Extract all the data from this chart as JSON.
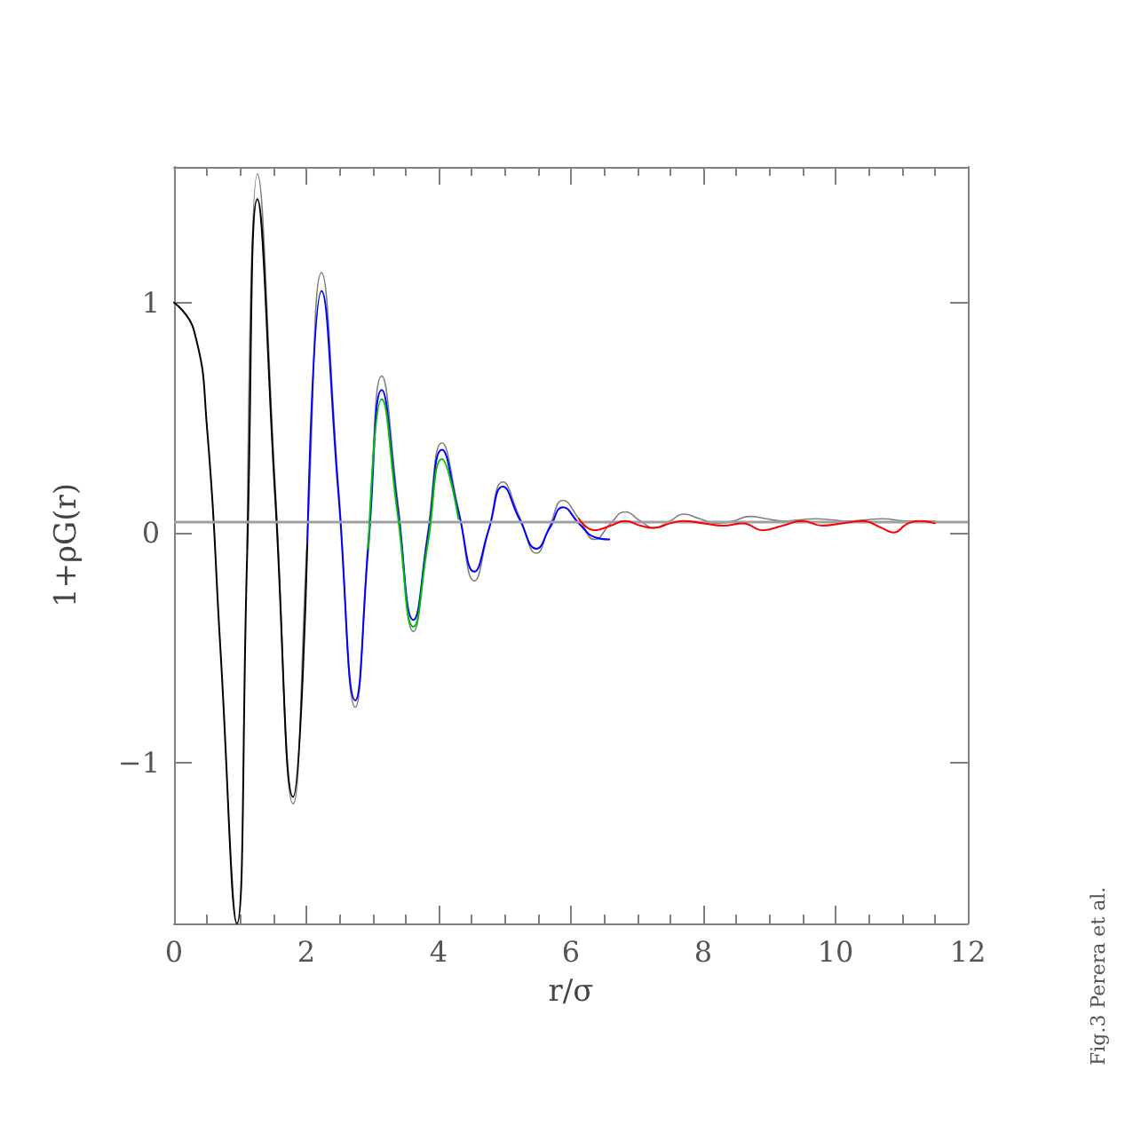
{
  "chart_data": {
    "type": "line",
    "xlabel": "r/σ",
    "ylabel": "1+ρG(r)",
    "annotations": [
      "Fig.3 Perera et al."
    ],
    "xlim": [
      0,
      12
    ],
    "xticks": [
      0,
      2,
      4,
      6,
      8,
      10,
      12
    ],
    "ylim": [
      -1.7,
      1.59
    ],
    "yticks": [
      -1,
      0,
      1
    ],
    "grid": false,
    "marker": "none",
    "line_style": "solid",
    "ref_lines": [
      {
        "axis": "y",
        "value": 0.05,
        "color": "#a0a0a0"
      }
    ],
    "series": [
      {
        "color": "#808080",
        "x": [
          1.105,
          1.26,
          1.53,
          1.8,
          2.015,
          2.23,
          2.485,
          2.74,
          2.94,
          3.14,
          3.38,
          3.62,
          3.835,
          4.05,
          4.3,
          4.54,
          4.755,
          4.97,
          5.22,
          5.48,
          5.68,
          5.88,
          6.12,
          6.36,
          6.6,
          6.82,
          7.05,
          7.25,
          7.5,
          7.7,
          7.95,
          8.2,
          8.45,
          8.7,
          8.95,
          9.2,
          9.45,
          9.7,
          9.95,
          10.2,
          10.45,
          10.7,
          11.1,
          11.5
        ],
        "values": [
          -0.07,
          1.56,
          0.2,
          -1.18,
          -0.02,
          1.13,
          0.2,
          -0.76,
          -0.02,
          0.68,
          0.14,
          -0.43,
          0.0,
          0.39,
          0.1,
          -0.21,
          0.01,
          0.22,
          0.07,
          -0.09,
          0.03,
          0.14,
          0.06,
          -0.03,
          0.04,
          0.09,
          0.05,
          0.02,
          0.05,
          0.08,
          0.06,
          0.04,
          0.05,
          0.07,
          0.06,
          0.05,
          0.055,
          0.06,
          0.055,
          0.05,
          0.055,
          0.06,
          0.05,
          0.05
        ]
      },
      {
        "color": "#000000",
        "x": [
          0,
          0.3,
          0.5,
          0.7,
          0.95,
          1.105,
          1.26,
          1.53,
          1.8,
          2.015
        ],
        "values": [
          1.0,
          0.88,
          0.45,
          -0.5,
          -1.7,
          -0.1,
          1.45,
          0.15,
          -1.15,
          -0.05
        ]
      },
      {
        "color": "#0000ff",
        "x": [
          2.015,
          2.23,
          2.485,
          2.74,
          2.94,
          3.14,
          3.38,
          3.62,
          3.835,
          4.05,
          4.3,
          4.54,
          4.755,
          4.97,
          5.22,
          5.48,
          5.68,
          5.88,
          6.12,
          6.36,
          6.58
        ],
        "values": [
          -0.05,
          1.05,
          0.17,
          -0.73,
          -0.05,
          0.62,
          0.11,
          -0.38,
          -0.02,
          0.36,
          0.09,
          -0.17,
          0.01,
          0.2,
          0.06,
          -0.07,
          0.02,
          0.11,
          0.04,
          -0.02,
          -0.03
        ]
      },
      {
        "color": "#00c000",
        "x": [
          2.94,
          3.14,
          3.38,
          3.62,
          3.835,
          4.05,
          4.3
        ],
        "values": [
          -0.07,
          0.58,
          0.08,
          -0.41,
          -0.05,
          0.32,
          0.06
        ]
      },
      {
        "color": "#ff0000",
        "x": [
          6.12,
          6.36,
          6.6,
          6.82,
          7.05,
          7.25,
          7.5,
          7.7,
          8.0,
          8.3,
          8.6,
          8.9,
          9.2,
          9.5,
          9.8,
          10.1,
          10.4,
          10.7,
          10.87,
          11.1,
          11.3,
          11.5
        ],
        "values": [
          0.06,
          0.01,
          0.03,
          0.05,
          0.03,
          0.02,
          0.04,
          0.05,
          0.04,
          0.03,
          0.04,
          0.01,
          0.03,
          0.05,
          0.03,
          0.04,
          0.05,
          0.02,
          0.0,
          0.04,
          0.05,
          0.04
        ]
      }
    ]
  }
}
